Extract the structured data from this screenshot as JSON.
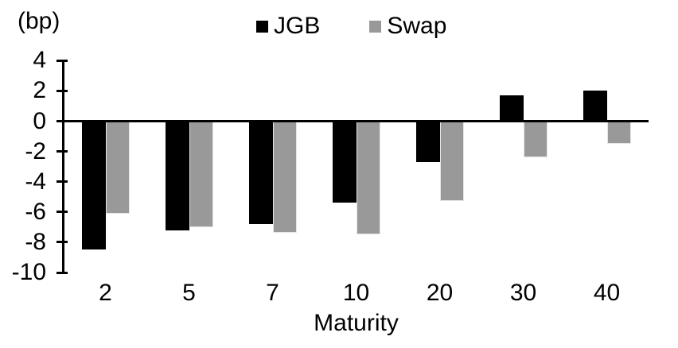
{
  "chart_data": {
    "type": "bar",
    "title": "",
    "unit_label": "(bp)",
    "xlabel": "Maturity",
    "ylabel": "",
    "categories": [
      "2",
      "5",
      "7",
      "10",
      "20",
      "30",
      "40"
    ],
    "series": [
      {
        "name": "JGB",
        "color": "#000000",
        "values": [
          -8.5,
          -7.2,
          -6.8,
          -5.4,
          -2.7,
          1.7,
          2.0
        ]
      },
      {
        "name": "Swap",
        "color": "#999999",
        "values": [
          -6.1,
          -7.0,
          -7.4,
          -7.5,
          -5.3,
          -2.4,
          -1.5
        ]
      }
    ],
    "yticks": [
      4,
      2,
      0,
      -2,
      -4,
      -6,
      -8,
      -10
    ],
    "ylim": [
      -10,
      4
    ],
    "grid": false,
    "legend_position": "top-center",
    "axis_color": "#000000",
    "background": "#ffffff"
  }
}
